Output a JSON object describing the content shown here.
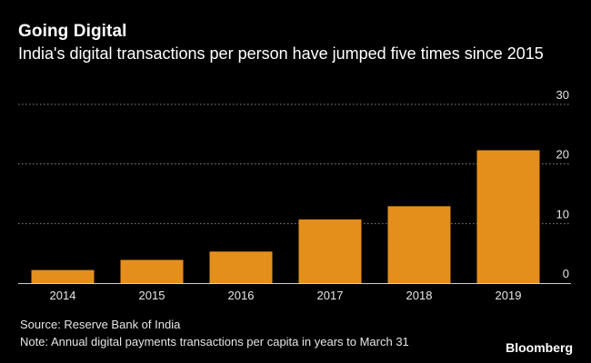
{
  "header": {
    "title": "Going Digital",
    "subtitle": "India's digital transactions per person have jumped five times since 2015"
  },
  "chart_data": {
    "type": "bar",
    "title": "Going Digital",
    "subtitle": "India's digital transactions per person have jumped five times since 2015",
    "categories": [
      "2014",
      "2015",
      "2016",
      "2017",
      "2018",
      "2019"
    ],
    "values": [
      2.2,
      3.9,
      5.3,
      10.7,
      12.9,
      22.3
    ],
    "xlabel": "",
    "ylabel": "",
    "ylim": [
      0,
      30
    ],
    "yticks": [
      0,
      10,
      20,
      30
    ],
    "grid": true,
    "y_axis_side": "right",
    "bar_color": "#e48f1b"
  },
  "footer": {
    "source": "Source: Reserve Bank of India",
    "note": "Note: Annual digital payments transactions per capita in years to March 31",
    "brand": "Bloomberg"
  },
  "colors": {
    "background": "#000000",
    "bar": "#e48f1b",
    "grid": "#8a8a8a",
    "text": "#ffffff"
  }
}
